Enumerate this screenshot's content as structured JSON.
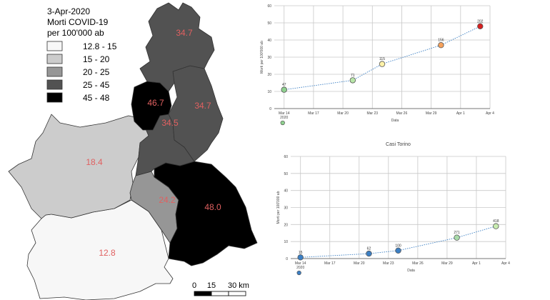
{
  "map": {
    "legend": {
      "title": [
        "3-Apr-2020",
        "Morti COVID-19",
        "per 100'000 ab"
      ],
      "classes": [
        {
          "label": "12.8 - 15",
          "color": "#f7f7f7"
        },
        {
          "label": "15 - 20",
          "color": "#cccccc"
        },
        {
          "label": "20 - 25",
          "color": "#969696"
        },
        {
          "label": "25 - 45",
          "color": "#525252"
        },
        {
          "label": "45 - 48",
          "color": "#000000"
        }
      ]
    },
    "provinces": [
      {
        "value": "34.7",
        "color": "#525252"
      },
      {
        "value": "46.7",
        "color": "#000000"
      },
      {
        "value": "34.5",
        "color": "#525252"
      },
      {
        "value": "34.7",
        "color": "#525252"
      },
      {
        "value": "18.4",
        "color": "#cccccc"
      },
      {
        "value": "24.2",
        "color": "#969696"
      },
      {
        "value": "48.0",
        "color": "#000000"
      },
      {
        "value": "12.8",
        "color": "#f7f7f7"
      }
    ],
    "scalebar": {
      "labels": [
        "0",
        "15",
        "30 km"
      ]
    },
    "label_color": "#e06060"
  },
  "chart_data": [
    {
      "type": "line",
      "title": "",
      "xlabel": "Data",
      "ylabel": "Morti per 100'000 ab",
      "ylim": [
        0,
        60
      ],
      "yticks": [
        0,
        10,
        20,
        30,
        40,
        50,
        60
      ],
      "xlim": [
        "2020-03-13",
        "2020-04-04"
      ],
      "xticks": [
        "Mar 14",
        "Mar 17",
        "Mar 20",
        "Mar 23",
        "Mar 26",
        "Mar 29",
        "Apr 1",
        "Apr 4"
      ],
      "xtick_dates": [
        "2020-03-14",
        "2020-03-17",
        "2020-03-20",
        "2020-03-23",
        "2020-03-26",
        "2020-03-29",
        "2020-04-01",
        "2020-04-04"
      ],
      "year_label": "2020",
      "grid": true,
      "points": [
        {
          "date": "2020-03-14",
          "y": 11,
          "label": "47",
          "color": "#8fd18f"
        },
        {
          "date": "2020-03-21",
          "y": 16.5,
          "label": "71",
          "color": "#b8e6a8"
        },
        {
          "date": "2020-03-24",
          "y": 26,
          "label": "115",
          "color": "#fff2a8"
        },
        {
          "date": "2020-03-30",
          "y": 37,
          "label": "156",
          "color": "#f5a15c"
        },
        {
          "date": "2020-04-03",
          "y": 48,
          "label": "202",
          "color": "#d62020"
        }
      ],
      "below_marker_color": "#8fd18f"
    },
    {
      "type": "line",
      "title": "Casi Torino",
      "xlabel": "Data",
      "ylabel": "Morti per 100'000 ab",
      "ylim": [
        0,
        60
      ],
      "yticks": [
        0,
        10,
        20,
        30,
        40,
        50,
        60
      ],
      "xlim": [
        "2020-03-13",
        "2020-04-04"
      ],
      "xticks": [
        "Mar 14",
        "Mar 17",
        "Mar 20",
        "Mar 23",
        "Mar 26",
        "Mar 29",
        "Apr 1",
        "Apr 4"
      ],
      "xtick_dates": [
        "2020-03-14",
        "2020-03-17",
        "2020-03-20",
        "2020-03-23",
        "2020-03-26",
        "2020-03-29",
        "2020-04-01",
        "2020-04-04"
      ],
      "year_label": "2020",
      "grid": true,
      "points": [
        {
          "date": "2020-03-14",
          "y": 0.7,
          "label": "15",
          "color": "#3b7fc4"
        },
        {
          "date": "2020-03-21",
          "y": 2.9,
          "label": "62",
          "color": "#3b7fc4"
        },
        {
          "date": "2020-03-24",
          "y": 4.7,
          "label": "100",
          "color": "#3b7fc4"
        },
        {
          "date": "2020-03-30",
          "y": 12.3,
          "label": "271",
          "color": "#a8dba8"
        },
        {
          "date": "2020-04-03",
          "y": 19,
          "label": "418",
          "color": "#c8ecb0"
        }
      ],
      "below_marker_color": "#3b7fc4"
    }
  ]
}
